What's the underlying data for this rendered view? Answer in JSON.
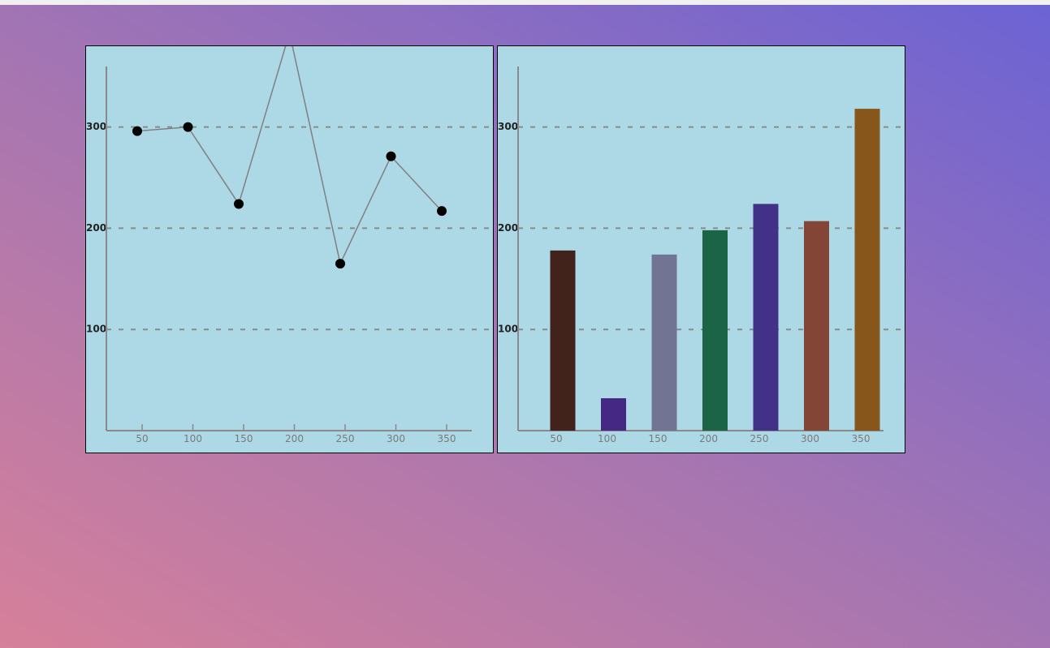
{
  "chart_data": [
    {
      "type": "line",
      "x": [
        50,
        100,
        150,
        200,
        250,
        300,
        350
      ],
      "series": [
        {
          "values": [
            296,
            300,
            224,
            393,
            165,
            271,
            217
          ],
          "color": "#000000"
        }
      ],
      "line_color": "#808080",
      "xticks": [
        "50",
        "100",
        "150",
        "200",
        "250",
        "300",
        "350"
      ],
      "yticks": [
        100,
        200,
        300
      ],
      "ytick_labels": [
        "100",
        "200",
        "300"
      ],
      "ylim": [
        0,
        400
      ],
      "xlim": [
        25,
        380
      ],
      "grid": "horizontal-dashed",
      "background": "#add8e6"
    },
    {
      "type": "bar",
      "categories": [
        "50",
        "100",
        "150",
        "200",
        "250",
        "300",
        "350"
      ],
      "values": [
        178,
        32,
        174,
        198,
        224,
        207,
        318
      ],
      "colors": [
        "#42231c",
        "#452784",
        "#727494",
        "#1b6546",
        "#423287",
        "#834536",
        "#87561a"
      ],
      "yticks": [
        100,
        200,
        300
      ],
      "ytick_labels": [
        "100",
        "200",
        "300"
      ],
      "ylim": [
        0,
        400
      ],
      "grid": "horizontal-dashed",
      "background": "#add8e6"
    }
  ]
}
